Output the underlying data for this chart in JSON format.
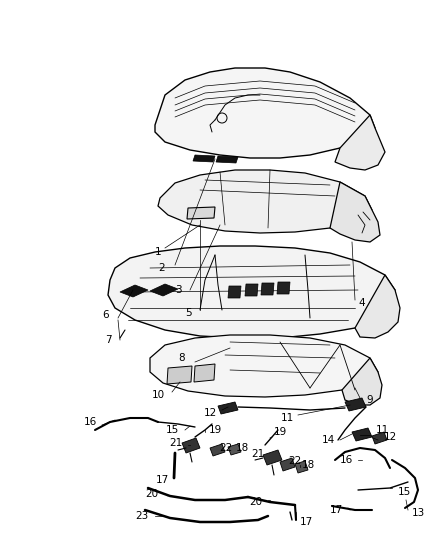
{
  "bg_color": "#ffffff",
  "line_color": "#000000",
  "fig_width": 4.38,
  "fig_height": 5.33,
  "dpi": 100
}
